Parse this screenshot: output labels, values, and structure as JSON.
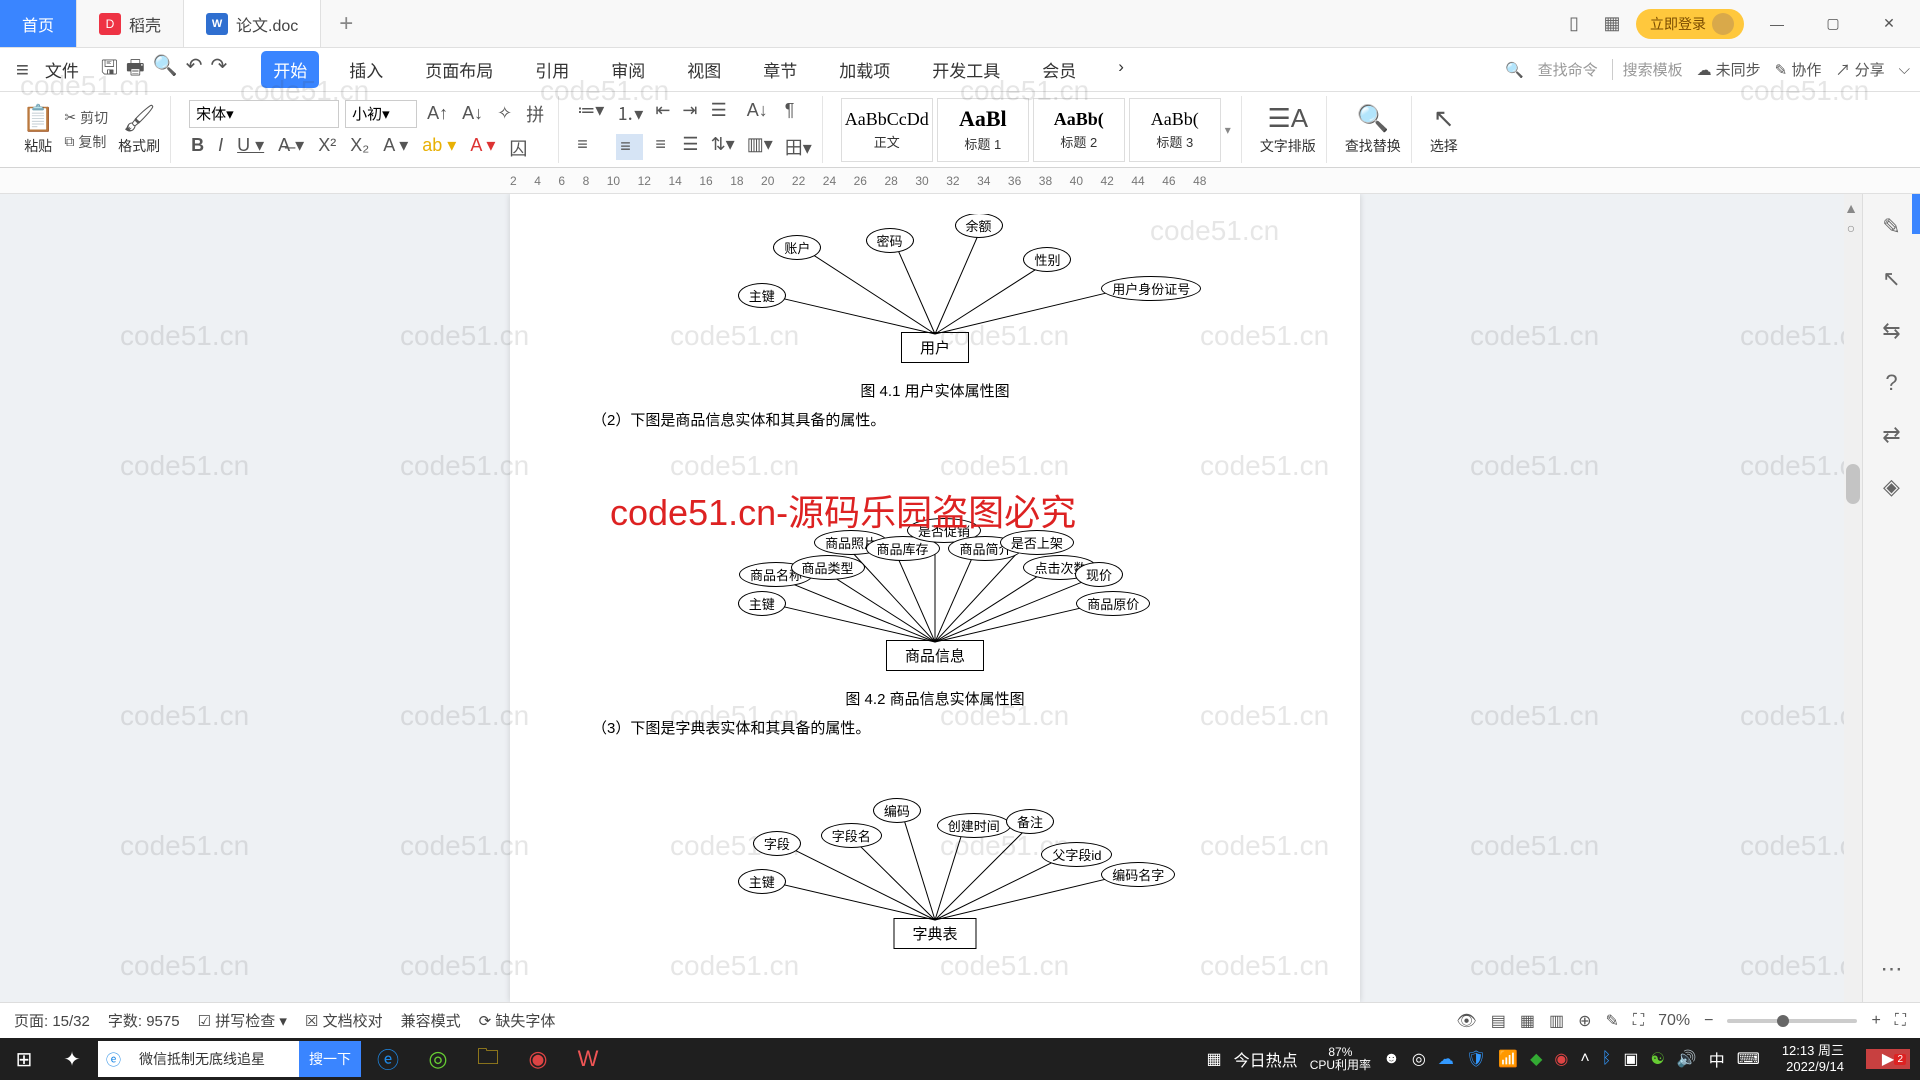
{
  "tabs": {
    "home": "首页",
    "dock": "稻壳",
    "doc": "论文.doc"
  },
  "titlebar": {
    "login": "立即登录"
  },
  "menurow": {
    "file": "文件",
    "tabs": [
      "开始",
      "插入",
      "页面布局",
      "引用",
      "审阅",
      "视图",
      "章节",
      "加载项",
      "开发工具",
      "会员"
    ],
    "search_cmd": "查找命令",
    "search_tpl": "搜索模板",
    "unsync": "未同步",
    "collab": "协作",
    "share": "分享"
  },
  "ribbon": {
    "cut": "剪切",
    "copy": "复制",
    "paste": "粘贴",
    "format_painter": "格式刷",
    "font_name": "宋体",
    "font_size": "小初",
    "styles": [
      {
        "prev": "AaBbCcDd",
        "label": "正文"
      },
      {
        "prev": "AaBl",
        "label": "标题 1"
      },
      {
        "prev": "AaBb(",
        "label": "标题 2"
      },
      {
        "prev": "AaBb(",
        "label": "标题 3"
      }
    ],
    "text_layout": "文字排版",
    "find_replace": "查找替换",
    "select": "选择"
  },
  "ruler_ticks": [
    "2",
    "4",
    "6",
    "8",
    "10",
    "12",
    "14",
    "16",
    "18",
    "20",
    "22",
    "24",
    "26",
    "28",
    "30",
    "32",
    "34",
    "36",
    "38",
    "40",
    "42",
    "44",
    "46",
    "48"
  ],
  "doc": {
    "fig41": "图 4.1 用户实体属性图",
    "desc2": "（2）下图是商品信息实体和其具备的属性。",
    "fig42": "图 4.2 商品信息实体属性图",
    "desc3": "（3）下图是字典表实体和其具备的属性。",
    "watermark_red": "code51.cn-源码乐园盗图必究",
    "er1": {
      "entity": "用户",
      "attrs": [
        "主键",
        "账户",
        "密码",
        "余额",
        "性别",
        "用户身份证号"
      ]
    },
    "er2": {
      "entity": "商品信息",
      "attrs": [
        "主键",
        "商品名称",
        "商品类型",
        "商品照片",
        "商品库存",
        "是否促销",
        "商品简介",
        "是否上架",
        "点击次数",
        "现价",
        "商品原价"
      ]
    },
    "er3": {
      "entity": "字典表",
      "attrs": [
        "主键",
        "字段",
        "字段名",
        "编码",
        "创建时间",
        "备注",
        "父字段id",
        "编码名字"
      ]
    }
  },
  "watermark_text": "code51.cn",
  "status": {
    "page": "页面: 15/32",
    "words": "字数: 9575",
    "spell": "拼写检查",
    "proof": "文档校对",
    "compat": "兼容模式",
    "missing_font": "缺失字体",
    "zoom": "70%"
  },
  "taskbar": {
    "search_text": "微信抵制无底线追星",
    "search_btn": "搜一下",
    "hot": "今日热点",
    "cpu": "CPU利用率",
    "pct": "87%",
    "ime": "中",
    "time": "12:13",
    "day": "周三",
    "date": "2022/9/14",
    "notif_count": "2"
  }
}
